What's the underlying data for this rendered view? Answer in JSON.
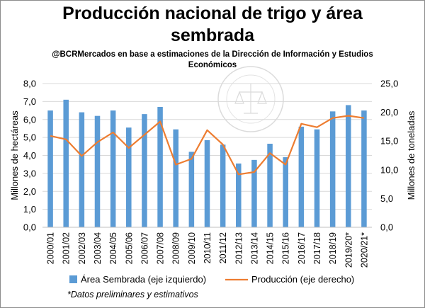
{
  "title_line1": "Producción nacional de trigo y área",
  "title_line2": "sembrada",
  "subtitle_line1": "@BCRMercados  en base a estimaciones de la Dirección de Información y Estudios",
  "subtitle_line2": "Económicos",
  "watermark_text": "BOLSA DE COMERCIO DE ROSARIO",
  "footnote": "*Datos preliminares y estimativos",
  "colors": {
    "bar": "#5b9bd5",
    "line": "#ed7d31",
    "grid": "#d9d9d9"
  },
  "chart_data": {
    "type": "bar+line",
    "categories": [
      "2000/01",
      "2001/02",
      "2002/03",
      "2003/04",
      "2004/05",
      "2005/06",
      "2006/07",
      "2007/08",
      "2008/09",
      "2009/10",
      "2010/11",
      "2011/12",
      "2012/13",
      "2013/14",
      "2014/15",
      "2015/16",
      "2016/17",
      "2017/18",
      "2018/19",
      "2019/20*",
      "2020/21*"
    ],
    "y_left_label": "Millones de hectáreas",
    "y_right_label": "Millones de toneladas",
    "y_left_lim": [
      0,
      8
    ],
    "y_right_lim": [
      0,
      25
    ],
    "y_left_ticks": [
      "0,0",
      "1,0",
      "2,0",
      "3,0",
      "4,0",
      "5,0",
      "6,0",
      "7,0",
      "8,0"
    ],
    "y_right_ticks": [
      "0,0",
      "5,0",
      "10,0",
      "15,0",
      "20,0",
      "25,0"
    ],
    "grid": true,
    "legend_position": "bottom",
    "series": [
      {
        "name": "Área Sembrada (eje izquierdo)",
        "type": "bar",
        "axis": "left",
        "values": [
          6.5,
          7.1,
          6.4,
          6.2,
          6.5,
          5.55,
          6.3,
          6.7,
          5.45,
          4.2,
          4.85,
          4.6,
          3.55,
          3.75,
          4.65,
          3.9,
          5.6,
          5.45,
          6.45,
          6.8,
          6.5
        ]
      },
      {
        "name": "Producción (eje derecho)",
        "type": "line",
        "axis": "right",
        "values": [
          15.9,
          15.3,
          12.4,
          14.8,
          16.5,
          13.8,
          16.1,
          18.4,
          10.9,
          11.9,
          16.9,
          14.4,
          9.2,
          9.6,
          12.9,
          10.9,
          18.0,
          17.4,
          19.0,
          19.4,
          19.0
        ]
      }
    ]
  }
}
